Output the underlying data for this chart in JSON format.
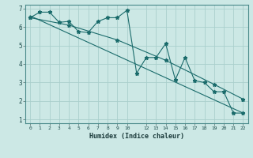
{
  "title": "",
  "xlabel": "Humidex (Indice chaleur)",
  "bg_color": "#cce8e5",
  "grid_color": "#aacfcc",
  "line_color": "#1a6b6b",
  "xlim": [
    -0.5,
    22.5
  ],
  "ylim": [
    0.8,
    7.2
  ],
  "yticks": [
    1,
    2,
    3,
    4,
    5,
    6,
    7
  ],
  "xticks": [
    0,
    1,
    2,
    3,
    4,
    5,
    6,
    7,
    8,
    9,
    10,
    12,
    13,
    14,
    15,
    16,
    17,
    18,
    19,
    20,
    21,
    22
  ],
  "series1_x": [
    0,
    1,
    2,
    3,
    4,
    5,
    6,
    7,
    8,
    9,
    10,
    11,
    12,
    13,
    14,
    15,
    16,
    17,
    18,
    19,
    20,
    21,
    22
  ],
  "series1_y": [
    6.5,
    6.8,
    6.8,
    6.25,
    6.3,
    5.75,
    5.7,
    6.3,
    6.5,
    6.5,
    6.9,
    3.5,
    4.35,
    4.35,
    5.1,
    3.15,
    4.35,
    3.1,
    3.0,
    2.5,
    2.5,
    1.35,
    1.35
  ],
  "series2_x": [
    0,
    22
  ],
  "series2_y": [
    6.6,
    1.35
  ],
  "series3_x": [
    0,
    4,
    9,
    14,
    19,
    22
  ],
  "series3_y": [
    6.5,
    6.1,
    5.3,
    4.2,
    2.9,
    2.1
  ]
}
